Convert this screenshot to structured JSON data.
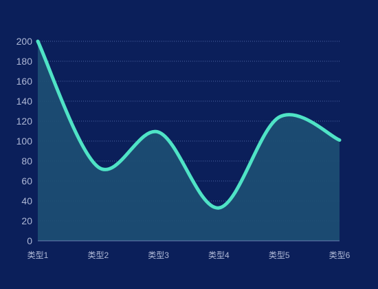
{
  "colors": {
    "background": "#0b1f5a",
    "line": "#4fe3c6",
    "area": "#1d4f73",
    "grid": "#5f76b8",
    "tick_text": "#aeb8d6",
    "axis": "#8aa0d0"
  },
  "chart_data": {
    "type": "area",
    "categories": [
      "类型1",
      "类型2",
      "类型3",
      "类型4",
      "类型5",
      "类型6"
    ],
    "series": [
      {
        "values": [
          200,
          74,
          109,
          33,
          124,
          101
        ]
      }
    ],
    "title": "",
    "xlabel": "",
    "ylabel": "",
    "ylim": [
      0,
      200
    ],
    "yticks": [
      0,
      20,
      40,
      60,
      80,
      100,
      120,
      140,
      160,
      180,
      200
    ],
    "smooth": true,
    "grid": "horizontal-dotted",
    "legend": "none"
  }
}
